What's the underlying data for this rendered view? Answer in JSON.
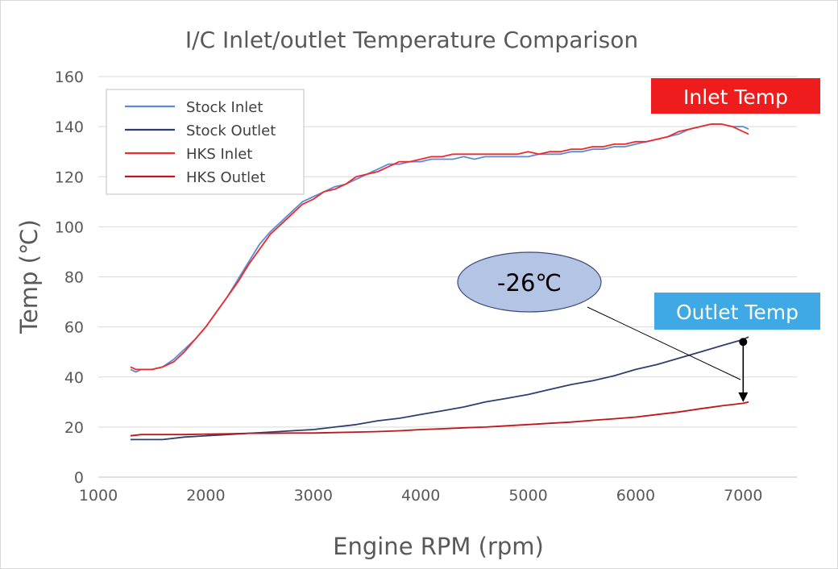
{
  "chart_data": {
    "type": "line",
    "title": "I/C Inlet/outlet Temperature Comparison",
    "xlabel": "Engine RPM (rpm)",
    "ylabel": "Temp (℃)",
    "xlim": [
      1000,
      7500
    ],
    "ylim": [
      0,
      160
    ],
    "xticks": [
      1000,
      2000,
      3000,
      4000,
      5000,
      6000,
      7000
    ],
    "yticks": [
      0,
      20,
      40,
      60,
      80,
      100,
      120,
      140,
      160
    ],
    "grid": "horizontal",
    "legend_position": "top-left",
    "series": [
      {
        "name": "Stock Inlet",
        "color": "#5b8ad8",
        "x": [
          1300,
          1350,
          1400,
          1500,
          1600,
          1700,
          1800,
          1900,
          2000,
          2100,
          2200,
          2300,
          2400,
          2500,
          2600,
          2700,
          2800,
          2900,
          3000,
          3100,
          3200,
          3300,
          3400,
          3500,
          3600,
          3700,
          3800,
          3900,
          4000,
          4100,
          4200,
          4300,
          4400,
          4500,
          4600,
          4700,
          4800,
          4900,
          5000,
          5100,
          5200,
          5300,
          5400,
          5500,
          5600,
          5700,
          5800,
          5900,
          6000,
          6100,
          6200,
          6300,
          6400,
          6500,
          6600,
          6700,
          6800,
          6900,
          7000,
          7050
        ],
        "values": [
          43,
          42,
          43,
          43,
          44,
          47,
          51,
          55,
          60,
          66,
          72,
          79,
          86,
          93,
          98,
          102,
          106,
          110,
          112,
          114,
          116,
          117,
          119,
          121,
          123,
          125,
          125,
          126,
          126,
          127,
          127,
          127,
          128,
          127,
          128,
          128,
          128,
          128,
          128,
          129,
          129,
          129,
          130,
          130,
          131,
          131,
          132,
          132,
          133,
          134,
          135,
          136,
          137,
          139,
          140,
          141,
          141,
          140,
          140,
          139
        ]
      },
      {
        "name": "Stock Outlet",
        "color": "#2e3f6e",
        "x": [
          1300,
          1400,
          1600,
          1800,
          2000,
          2200,
          2400,
          2600,
          2800,
          3000,
          3200,
          3400,
          3600,
          3800,
          4000,
          4200,
          4400,
          4600,
          4800,
          5000,
          5200,
          5400,
          5600,
          5800,
          6000,
          6200,
          6400,
          6600,
          6800,
          7000,
          7050
        ],
        "values": [
          15,
          15,
          15,
          16,
          16.5,
          17,
          17.5,
          18,
          18.5,
          19,
          20,
          21,
          22.5,
          23.5,
          25,
          26.5,
          28,
          30,
          31.5,
          33,
          35,
          37,
          38.5,
          40.5,
          43,
          45,
          47.5,
          50,
          52.5,
          55,
          56
        ]
      },
      {
        "name": "HKS Inlet",
        "color": "#ee2a2a",
        "x": [
          1300,
          1350,
          1400,
          1500,
          1600,
          1700,
          1800,
          1900,
          2000,
          2100,
          2200,
          2300,
          2400,
          2500,
          2600,
          2700,
          2800,
          2900,
          3000,
          3100,
          3200,
          3300,
          3400,
          3500,
          3600,
          3700,
          3800,
          3900,
          4000,
          4100,
          4200,
          4300,
          4400,
          4500,
          4600,
          4700,
          4800,
          4900,
          5000,
          5100,
          5200,
          5300,
          5400,
          5500,
          5600,
          5700,
          5800,
          5900,
          6000,
          6100,
          6200,
          6300,
          6400,
          6500,
          6600,
          6700,
          6800,
          6900,
          7000,
          7050
        ],
        "values": [
          44,
          43,
          43,
          43,
          44,
          46,
          50,
          55,
          60,
          66,
          72,
          78,
          85,
          91,
          97,
          101,
          105,
          109,
          111,
          114,
          115,
          117,
          120,
          121,
          122,
          124,
          126,
          126,
          127,
          128,
          128,
          129,
          129,
          129,
          129,
          129,
          129,
          129,
          130,
          129,
          130,
          130,
          131,
          131,
          132,
          132,
          133,
          133,
          134,
          134,
          135,
          136,
          138,
          139,
          140,
          141,
          141,
          140,
          138,
          137
        ]
      },
      {
        "name": "HKS Outlet",
        "color": "#c0151b",
        "x": [
          1300,
          1400,
          1600,
          1800,
          2000,
          2200,
          2400,
          2600,
          2800,
          3000,
          3200,
          3400,
          3600,
          3800,
          4000,
          4200,
          4400,
          4600,
          4800,
          5000,
          5200,
          5400,
          5600,
          5800,
          6000,
          6200,
          6400,
          6600,
          6800,
          7000,
          7050
        ],
        "values": [
          16.5,
          17,
          17,
          17,
          17.2,
          17.3,
          17.5,
          17.5,
          17.6,
          17.6,
          17.8,
          18,
          18.2,
          18.5,
          19,
          19.3,
          19.7,
          20,
          20.5,
          21,
          21.5,
          22,
          22.7,
          23.3,
          24,
          25,
          26,
          27.3,
          28.5,
          29.5,
          30
        ]
      }
    ],
    "annotations": {
      "inlet_label": "Inlet Temp",
      "inlet_label_color": "#ee1c1c",
      "outlet_label": "Outlet Temp",
      "outlet_label_color": "#3fa9e6",
      "delta_label": "-26℃",
      "delta_bubble_color": "#b4c4e4",
      "delta_arrow": {
        "x": 7000,
        "from": 54,
        "to": 30
      }
    }
  }
}
